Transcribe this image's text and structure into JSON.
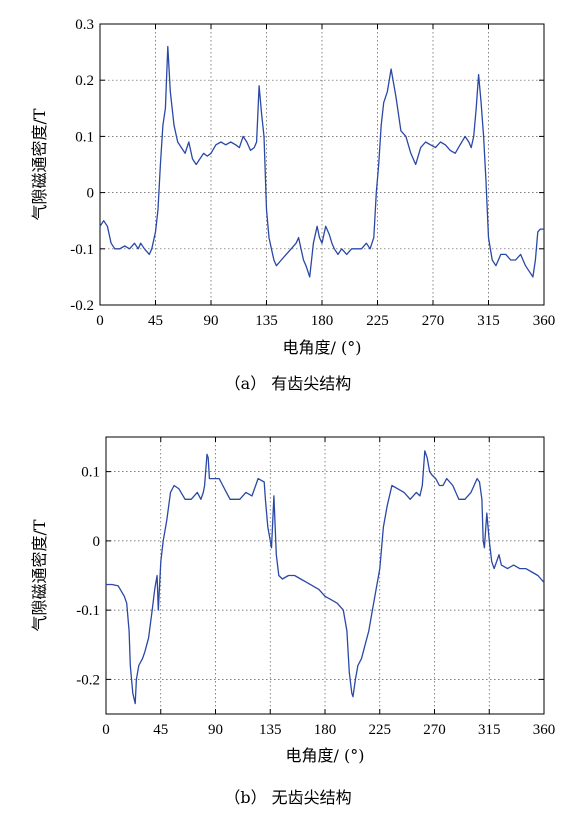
{
  "chart_data": [
    {
      "type": "line",
      "caption": "（a） 有齿尖结构",
      "xlabel": "电角度/ (°)",
      "ylabel": "气隙磁通密度/T",
      "xlim": [
        0,
        360
      ],
      "ylim": [
        -0.2,
        0.3
      ],
      "xticks": [
        0,
        45,
        90,
        135,
        180,
        225,
        270,
        315,
        360
      ],
      "yticks": [
        -0.2,
        -0.1,
        0,
        0.1,
        0.2,
        0.3
      ],
      "ytick_labels": [
        "-0.2",
        "-0.1",
        "0",
        "0.1",
        "0.2",
        "0.3"
      ],
      "grid": true,
      "line_color": "#2a48a6",
      "series": [
        {
          "x": [
            0,
            3,
            6,
            9,
            12,
            16,
            20,
            24,
            28,
            31,
            33,
            36,
            40,
            42,
            45,
            47,
            49,
            51,
            53,
            55,
            57,
            60,
            63,
            66,
            69,
            72,
            75,
            78,
            81,
            84,
            87,
            90,
            94,
            98,
            102,
            106,
            110,
            113,
            116,
            119,
            122,
            125,
            127,
            129,
            131,
            133,
            135,
            137,
            139,
            141,
            143,
            147,
            151,
            155,
            159,
            161,
            163,
            165,
            167,
            170,
            173,
            176,
            178,
            180,
            183,
            186,
            188,
            190,
            193,
            196,
            200,
            204,
            208,
            212,
            216,
            219,
            222,
            224,
            226,
            228,
            230,
            233,
            236,
            240,
            244,
            248,
            252,
            256,
            260,
            264,
            268,
            272,
            276,
            280,
            284,
            288,
            292,
            296,
            299,
            301,
            303,
            305,
            307,
            309,
            311,
            313,
            315,
            318,
            321,
            325,
            329,
            333,
            337,
            341,
            345,
            348,
            351,
            353,
            355,
            357,
            360
          ],
          "y": [
            -0.06,
            -0.05,
            -0.06,
            -0.09,
            -0.1,
            -0.1,
            -0.095,
            -0.1,
            -0.09,
            -0.1,
            -0.09,
            -0.1,
            -0.11,
            -0.1,
            -0.07,
            -0.03,
            0.05,
            0.12,
            0.15,
            0.26,
            0.18,
            0.12,
            0.09,
            0.08,
            0.07,
            0.09,
            0.06,
            0.05,
            0.06,
            0.07,
            0.065,
            0.07,
            0.085,
            0.09,
            0.085,
            0.09,
            0.085,
            0.08,
            0.1,
            0.09,
            0.075,
            0.08,
            0.09,
            0.19,
            0.14,
            0.1,
            -0.03,
            -0.08,
            -0.1,
            -0.12,
            -0.13,
            -0.12,
            -0.11,
            -0.1,
            -0.09,
            -0.08,
            -0.1,
            -0.12,
            -0.13,
            -0.15,
            -0.09,
            -0.06,
            -0.08,
            -0.09,
            -0.06,
            -0.075,
            -0.09,
            -0.1,
            -0.11,
            -0.1,
            -0.11,
            -0.1,
            -0.1,
            -0.1,
            -0.09,
            -0.1,
            -0.08,
            0.0,
            0.05,
            0.12,
            0.16,
            0.18,
            0.22,
            0.17,
            0.11,
            0.1,
            0.07,
            0.05,
            0.08,
            0.09,
            0.085,
            0.08,
            0.09,
            0.085,
            0.075,
            0.07,
            0.085,
            0.1,
            0.09,
            0.08,
            0.1,
            0.15,
            0.21,
            0.16,
            0.1,
            0.02,
            -0.08,
            -0.12,
            -0.13,
            -0.11,
            -0.11,
            -0.12,
            -0.12,
            -0.11,
            -0.13,
            -0.14,
            -0.15,
            -0.12,
            -0.07,
            -0.065,
            -0.065
          ]
        }
      ]
    },
    {
      "type": "line",
      "caption": "（b） 无齿尖结构",
      "xlabel": "电角度/ (°)",
      "ylabel": "气隙磁通密度/T",
      "xlim": [
        0,
        360
      ],
      "ylim": [
        -0.25,
        0.15
      ],
      "xticks": [
        0,
        45,
        90,
        135,
        180,
        225,
        270,
        315,
        360
      ],
      "yticks": [
        -0.2,
        -0.1,
        0,
        0.1
      ],
      "ytick_labels": [
        "-0.2",
        "-0.1",
        "0",
        "0.1"
      ],
      "grid": true,
      "line_color": "#2a48a6",
      "series": [
        {
          "x": [
            0,
            5,
            10,
            15,
            17,
            19,
            20,
            22,
            24,
            25,
            27,
            30,
            32,
            35,
            38,
            40,
            42,
            43,
            45,
            47,
            50,
            53,
            56,
            60,
            65,
            70,
            75,
            78,
            80,
            81,
            83,
            84,
            85,
            87,
            90,
            93,
            96,
            99,
            102,
            105,
            110,
            115,
            120,
            125,
            130,
            131,
            133,
            135,
            136,
            138,
            140,
            142,
            145,
            150,
            155,
            160,
            165,
            170,
            175,
            180,
            185,
            190,
            195,
            198,
            200,
            202,
            203,
            205,
            207,
            210,
            213,
            216,
            219,
            222,
            225,
            228,
            231,
            235,
            240,
            245,
            250,
            255,
            258,
            260,
            262,
            264,
            266,
            268,
            271,
            274,
            277,
            280,
            285,
            290,
            295,
            300,
            305,
            307,
            309,
            310,
            311,
            313,
            315,
            317,
            319,
            321,
            323,
            325,
            330,
            335,
            340,
            345,
            350,
            355,
            360
          ],
          "y": [
            -0.063,
            -0.063,
            -0.065,
            -0.08,
            -0.09,
            -0.13,
            -0.18,
            -0.22,
            -0.235,
            -0.2,
            -0.18,
            -0.17,
            -0.16,
            -0.14,
            -0.1,
            -0.07,
            -0.05,
            -0.1,
            -0.03,
            0.0,
            0.03,
            0.07,
            0.08,
            0.075,
            0.06,
            0.06,
            0.07,
            0.06,
            0.07,
            0.08,
            0.125,
            0.12,
            0.09,
            0.09,
            0.09,
            0.09,
            0.08,
            0.07,
            0.06,
            0.06,
            0.06,
            0.07,
            0.065,
            0.09,
            0.085,
            0.06,
            0.02,
            0.0,
            -0.01,
            0.065,
            -0.02,
            -0.05,
            -0.055,
            -0.05,
            -0.05,
            -0.055,
            -0.06,
            -0.065,
            -0.07,
            -0.08,
            -0.085,
            -0.09,
            -0.1,
            -0.13,
            -0.19,
            -0.22,
            -0.225,
            -0.2,
            -0.18,
            -0.17,
            -0.15,
            -0.13,
            -0.1,
            -0.07,
            -0.04,
            0.02,
            0.05,
            0.08,
            0.075,
            0.07,
            0.06,
            0.07,
            0.065,
            0.08,
            0.13,
            0.12,
            0.1,
            0.095,
            0.09,
            0.08,
            0.08,
            0.09,
            0.08,
            0.06,
            0.06,
            0.07,
            0.09,
            0.085,
            0.06,
            0.0,
            -0.01,
            0.04,
            0.0,
            -0.03,
            -0.04,
            -0.03,
            -0.02,
            -0.035,
            -0.04,
            -0.035,
            -0.04,
            -0.04,
            -0.045,
            -0.05,
            -0.06
          ]
        }
      ]
    }
  ]
}
